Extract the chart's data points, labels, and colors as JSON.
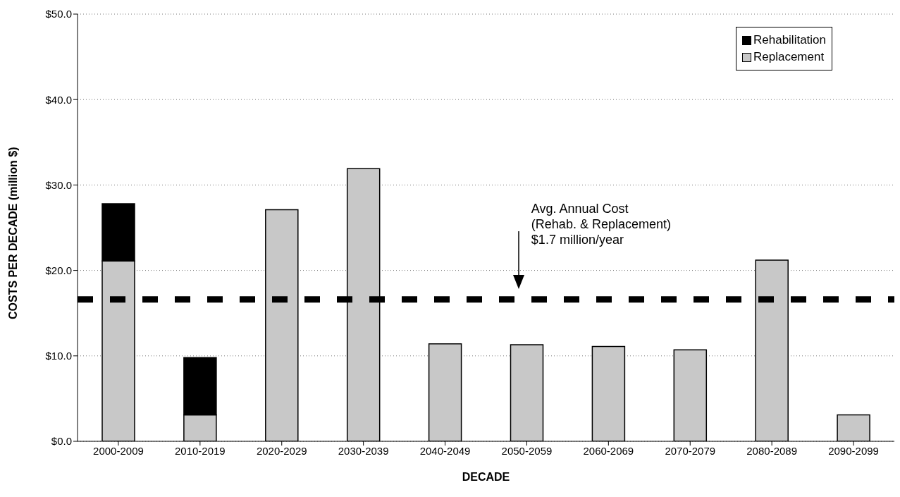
{
  "chart_data": {
    "type": "bar",
    "stacked": true,
    "xlabel": "DECADE",
    "ylabel": "COSTS PER DECADE (million $)",
    "categories": [
      "2000-2009",
      "2010-2019",
      "2020-2029",
      "2030-2039",
      "2040-2049",
      "2050-2059",
      "2060-2069",
      "2070-2079",
      "2080-2089",
      "2090-2099"
    ],
    "series": [
      {
        "name": "Replacement",
        "color": "#c8c8c8",
        "values": [
          21.1,
          3.1,
          27.1,
          31.9,
          11.4,
          11.3,
          11.1,
          10.7,
          21.2,
          3.1
        ]
      },
      {
        "name": "Rehabilitation",
        "color": "#000000",
        "values": [
          6.7,
          6.7,
          null,
          null,
          null,
          null,
          null,
          null,
          null,
          null
        ]
      }
    ],
    "ylim": [
      0,
      50
    ],
    "yticks": [
      {
        "value": 0,
        "label": "$0.0"
      },
      {
        "value": 10,
        "label": "$10.0"
      },
      {
        "value": 20,
        "label": "$20.0"
      },
      {
        "value": 30,
        "label": "$30.0"
      },
      {
        "value": 40,
        "label": "$40.0"
      },
      {
        "value": 50,
        "label": "$50.0"
      }
    ],
    "grid": "y",
    "legend": "top right",
    "ref_lines": [
      {
        "axis": "y",
        "value": 16.6,
        "color": "#000000",
        "line_style": "dashed"
      }
    ],
    "annotations": [
      "Avg. Annual Cost\n(Rehab. & Replacement)\n$1.7 million/year"
    ]
  }
}
